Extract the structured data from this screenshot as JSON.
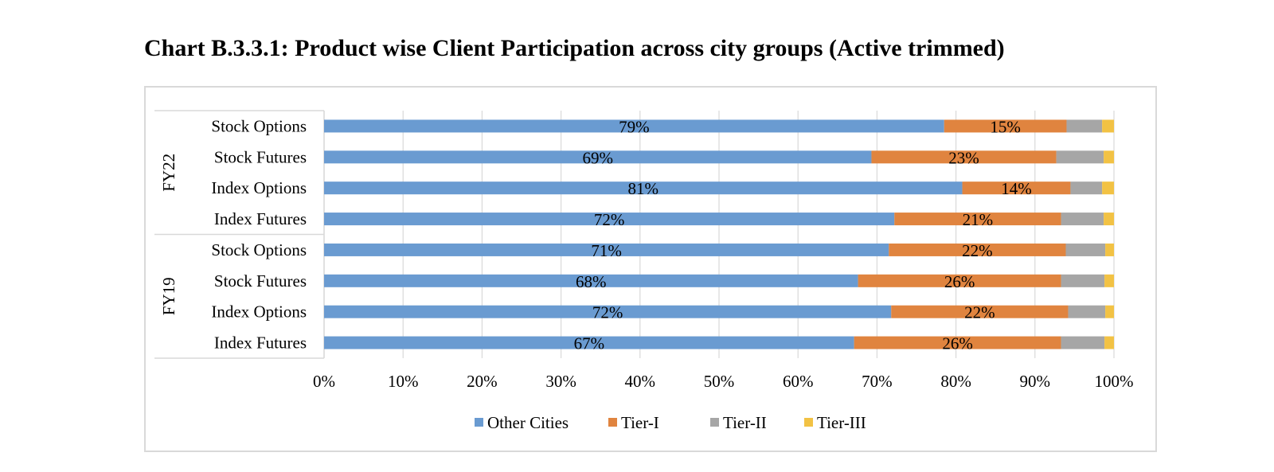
{
  "title": "Chart B.3.3.1: Product wise Client Participation across city groups (Active trimmed)",
  "chart_data": {
    "type": "bar",
    "orientation": "horizontal",
    "stacked": true,
    "title": "Chart B.3.3.1: Product wise Client Participation across city groups (Active trimmed)",
    "groups": [
      {
        "name": "FY22",
        "categories": [
          "Stock Options",
          "Stock Futures",
          "Index Options",
          "Index Futures"
        ]
      },
      {
        "name": "FY19",
        "categories": [
          "Stock Options",
          "Stock Futures",
          "Index Options",
          "Index Futures"
        ]
      }
    ],
    "rows": [
      {
        "group": "FY22",
        "category": "Stock Options"
      },
      {
        "group": "FY22",
        "category": "Stock Futures"
      },
      {
        "group": "FY22",
        "category": "Index Options"
      },
      {
        "group": "FY22",
        "category": "Index Futures"
      },
      {
        "group": "FY19",
        "category": "Stock Options"
      },
      {
        "group": "FY19",
        "category": "Stock Futures"
      },
      {
        "group": "FY19",
        "category": "Index Options"
      },
      {
        "group": "FY19",
        "category": "Index Futures"
      }
    ],
    "series": [
      {
        "name": "Other Cities",
        "color": "#6a9bd1",
        "values": [
          78.5,
          69.3,
          80.8,
          72.2,
          71.5,
          67.6,
          71.8,
          67.1
        ],
        "labels": [
          "79%",
          "69%",
          "81%",
          "72%",
          "71%",
          "68%",
          "72%",
          "67%"
        ]
      },
      {
        "name": "Tier-I",
        "color": "#e0843f",
        "values": [
          15.5,
          23.4,
          13.7,
          21.1,
          22.4,
          25.7,
          22.4,
          26.2
        ],
        "labels": [
          "15%",
          "23%",
          "14%",
          "21%",
          "22%",
          "26%",
          "22%",
          "26%"
        ]
      },
      {
        "name": "Tier-II",
        "color": "#a6a6a6",
        "values": [
          4.5,
          6.0,
          4.0,
          5.4,
          5.0,
          5.5,
          4.7,
          5.5
        ],
        "labels": [
          "",
          "",
          "",
          "",
          "",
          "",
          "",
          ""
        ]
      },
      {
        "name": "Tier-III",
        "color": "#f2c244",
        "values": [
          1.5,
          1.3,
          1.5,
          1.3,
          1.1,
          1.2,
          1.1,
          1.2
        ],
        "labels": [
          "",
          "",
          "",
          "",
          "",
          "",
          "",
          ""
        ]
      }
    ],
    "xticks": [
      "0%",
      "10%",
      "20%",
      "30%",
      "40%",
      "50%",
      "60%",
      "70%",
      "80%",
      "90%",
      "100%"
    ],
    "xlim": [
      0,
      100
    ],
    "grid": true,
    "legend_position": "bottom"
  }
}
